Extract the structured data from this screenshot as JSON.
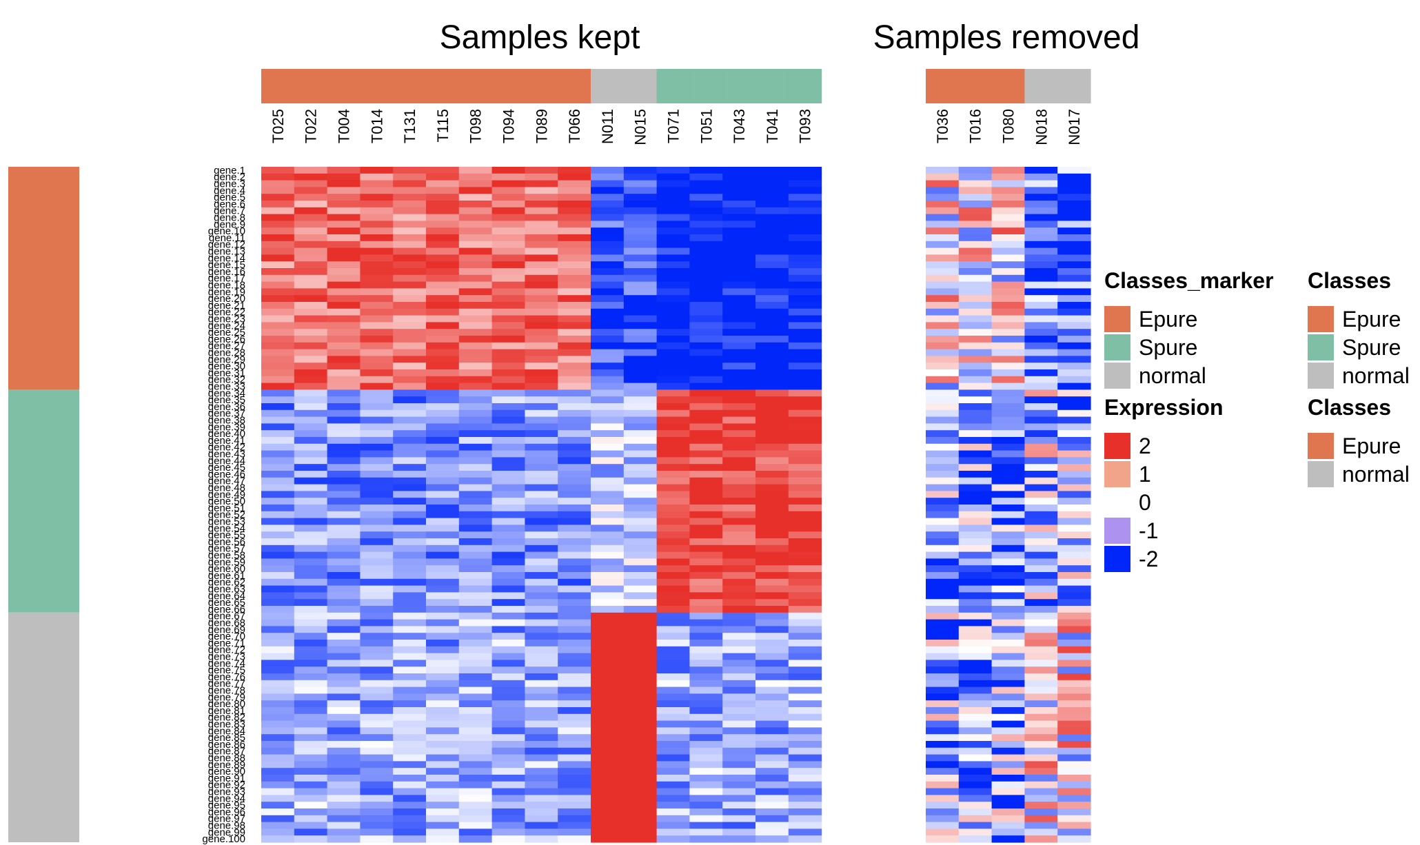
{
  "chart_data": {
    "type": "heatmap",
    "panels": [
      {
        "title": "Samples kept",
        "samples": [
          "T025",
          "T022",
          "T004",
          "T014",
          "T131",
          "T115",
          "T098",
          "T094",
          "T089",
          "T066",
          "N011",
          "N015",
          "T071",
          "T051",
          "T043",
          "T041",
          "T093"
        ],
        "sample_classes": [
          "Epure",
          "Epure",
          "Epure",
          "Epure",
          "Epure",
          "Epure",
          "Epure",
          "Epure",
          "Epure",
          "Epure",
          "normal",
          "normal",
          "Spure",
          "Spure",
          "Spure",
          "Spure",
          "Spure"
        ]
      },
      {
        "title": "Samples removed",
        "samples": [
          "T036",
          "T016",
          "T080",
          "N018",
          "N017"
        ],
        "sample_classes": [
          "Epure",
          "Epure",
          "Epure",
          "normal",
          "normal"
        ]
      }
    ],
    "genes": {
      "count": 100,
      "first_label": "gene.1",
      "last_label": "gene.100",
      "prefix": "gene."
    },
    "row_annotation": {
      "name": "Classes_marker",
      "blocks": [
        {
          "class": "Epure",
          "from_gene": 1,
          "to_gene": 33
        },
        {
          "class": "Spure",
          "from_gene": 34,
          "to_gene": 66
        },
        {
          "class": "normal",
          "from_gene": 67,
          "to_gene": 100
        }
      ]
    },
    "expression_range": [
      -2,
      2
    ],
    "expression_pattern": [
      {
        "gene_block": "Epure",
        "high_in": "Epure",
        "low_in": [
          "Spure"
        ]
      },
      {
        "gene_block": "Spure",
        "high_in": "Spure",
        "low_in": [
          "Epure"
        ]
      },
      {
        "gene_block": "normal",
        "high_in": "normal",
        "low_in": [
          "Epure",
          "Spure"
        ]
      }
    ],
    "legend_placement": "right"
  },
  "legends": [
    {
      "title": "Classes_marker",
      "items": [
        {
          "label": "Epure",
          "color": "#E07650"
        },
        {
          "label": "Spure",
          "color": "#7FBFA5"
        },
        {
          "label": "normal",
          "color": "#BEBEBE"
        }
      ]
    },
    {
      "title": "Classes",
      "items": [
        {
          "label": "Epure",
          "color": "#E07650"
        },
        {
          "label": "Spure",
          "color": "#7FBFA5"
        },
        {
          "label": "normal",
          "color": "#BEBEBE"
        }
      ]
    },
    {
      "title": "Expression",
      "items": [
        {
          "label": "2",
          "color": "#E8302A"
        },
        {
          "label": "1",
          "color": "#F2A48B"
        },
        {
          "label": "0",
          "color": "#FFFFFF"
        },
        {
          "label": "-1",
          "color": "#AD92F0"
        },
        {
          "label": "-2",
          "color": "#0026FA"
        }
      ]
    },
    {
      "title": "Classes",
      "items": [
        {
          "label": "Epure",
          "color": "#E07650"
        },
        {
          "label": "normal",
          "color": "#BEBEBE"
        }
      ]
    }
  ],
  "colors": {
    "Epure": "#E07650",
    "Spure": "#7FBFA5",
    "normal": "#BEBEBE",
    "high": "#E8302A",
    "mid": "#FFFFFF",
    "low": "#0026FA"
  }
}
